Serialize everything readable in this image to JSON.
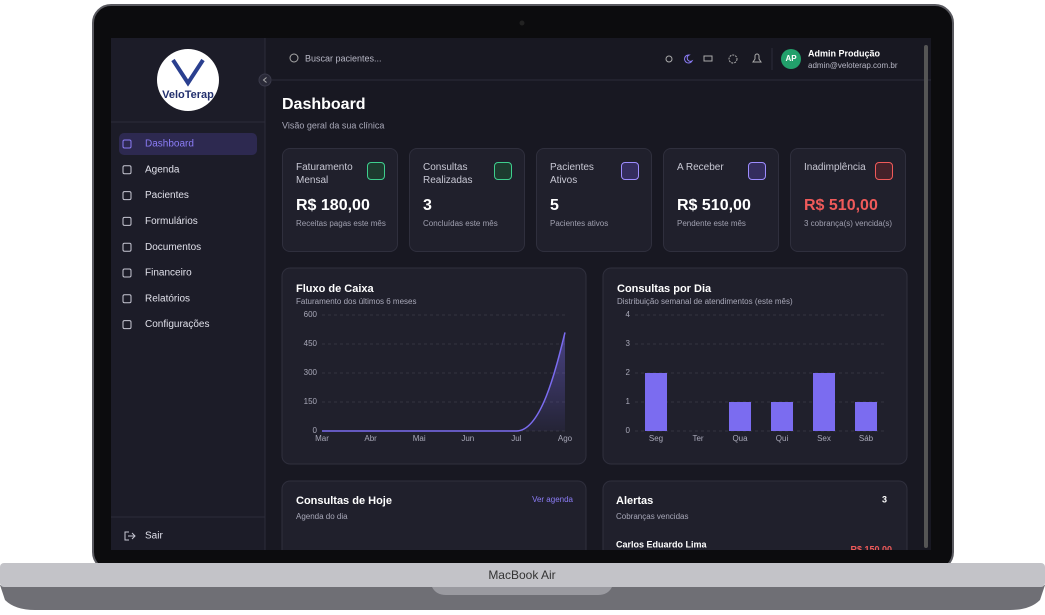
{
  "device_label": "MacBook Air",
  "logo": "VeloTerap",
  "search_placeholder": "Buscar pacientes...",
  "user": {
    "initials": "AP",
    "name": "Admin Produção",
    "email": "admin@veloterap.com.br"
  },
  "nav": [
    "Dashboard",
    "Agenda",
    "Pacientes",
    "Formulários",
    "Documentos",
    "Financeiro",
    "Relatórios",
    "Configurações"
  ],
  "logout": "Sair",
  "page": {
    "title": "Dashboard",
    "subtitle": "Visão geral da sua clínica"
  },
  "stats": [
    {
      "label": "Faturamento Mensal",
      "value": "R$ 180,00",
      "note": "Receitas pagas este mês"
    },
    {
      "label": "Consultas Realizadas",
      "value": "3",
      "note": "Concluídas este mês"
    },
    {
      "label": "Pacientes Ativos",
      "value": "5",
      "note": "Pacientes ativos"
    },
    {
      "label": "A Receber",
      "value": "R$ 510,00",
      "note": "Pendente este mês"
    },
    {
      "label": "Inadimplência",
      "value": "R$ 510,00",
      "note": "3 cobrança(s) vencida(s)"
    }
  ],
  "today": {
    "title": "Consultas de Hoje",
    "subtitle": "Agenda do dia",
    "link": "Ver agenda"
  },
  "alerts": {
    "title": "Alertas",
    "count": 3,
    "subtitle": "Cobranças vencidas",
    "items": [
      {
        "name": "Carlos Eduardo Lima",
        "amount": "R$ 150,00"
      }
    ]
  },
  "chart_data": [
    {
      "type": "line",
      "title": "Fluxo de Caixa",
      "subtitle": "Faturamento dos últimos 6 meses",
      "categories": [
        "Mar",
        "Abr",
        "Mai",
        "Jun",
        "Jul",
        "Ago"
      ],
      "series": [
        {
          "name": "Faturamento",
          "color": "#7b6cf0",
          "values": [
            0,
            0,
            0,
            0,
            0,
            510
          ]
        }
      ],
      "ylim": [
        0,
        600
      ],
      "yticks": [
        0,
        150,
        300,
        450,
        600
      ],
      "grid": true
    },
    {
      "type": "bar",
      "title": "Consultas por Dia",
      "subtitle": "Distribuição semanal de atendimentos (este mês)",
      "categories": [
        "Seg",
        "Ter",
        "Qua",
        "Qui",
        "Sex",
        "Sáb"
      ],
      "values": [
        2,
        0,
        1,
        1,
        2,
        1
      ],
      "color": "#7b6cf0",
      "ylim": [
        0,
        4
      ],
      "yticks": [
        0,
        1,
        2,
        3,
        4
      ],
      "grid": true
    }
  ]
}
